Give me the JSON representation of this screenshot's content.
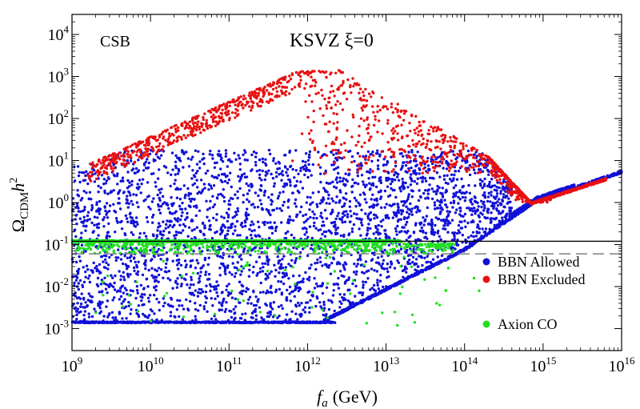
{
  "chart_data": {
    "type": "scatter",
    "title": "KSVZ ξ=0",
    "annotation": "CSB",
    "xlabel": {
      "var": "f",
      "sub": "a",
      "unit": "(GeV)"
    },
    "ylabel": {
      "sym": "Ω",
      "sub": "CDM",
      "rest": "h",
      "sup": "2"
    },
    "x_scale": "log",
    "y_scale": "log",
    "xlim": [
      1000000000.0,
      1e+16
    ],
    "ylim": [
      0.0003,
      30000
    ],
    "x_ticks": [
      {
        "base": "10",
        "exp": "9",
        "value": 1000000000.0
      },
      {
        "base": "10",
        "exp": "10",
        "value": 10000000000.0
      },
      {
        "base": "10",
        "exp": "11",
        "value": 100000000000.0
      },
      {
        "base": "10",
        "exp": "12",
        "value": 1000000000000.0
      },
      {
        "base": "10",
        "exp": "13",
        "value": 10000000000000.0
      },
      {
        "base": "10",
        "exp": "14",
        "value": 100000000000000.0
      },
      {
        "base": "10",
        "exp": "15",
        "value": 1000000000000000.0
      },
      {
        "base": "10",
        "exp": "16",
        "value": 1e+16
      }
    ],
    "y_ticks": [
      {
        "base": "10",
        "exp": "-3",
        "value": 0.001
      },
      {
        "base": "10",
        "exp": "-2",
        "value": 0.01
      },
      {
        "base": "10",
        "exp": "-1",
        "value": 0.1
      },
      {
        "base": "10",
        "exp": "0",
        "value": 1
      },
      {
        "base": "10",
        "exp": "1",
        "value": 10
      },
      {
        "base": "10",
        "exp": "2",
        "value": 100
      },
      {
        "base": "10",
        "exp": "3",
        "value": 1000
      },
      {
        "base": "10",
        "exp": "4",
        "value": 10000
      }
    ],
    "reference_lines": [
      {
        "name": "dm-observed-line",
        "y": 0.12,
        "style": "solid",
        "color": "#000000"
      },
      {
        "name": "dm-dashed-line",
        "y": 0.06,
        "style": "dashed",
        "color": "#888888"
      }
    ],
    "series": [
      {
        "name": "BBN Allowed",
        "color": "#1010d8",
        "description_points": [
          [
            1000000000.0,
            0.0014
          ],
          [
            10000000000.0,
            0.0014
          ],
          [
            100000000000.0,
            0.0014
          ],
          [
            1000000000000.0,
            0.0014
          ],
          [
            2000000000000.0,
            0.0014
          ],
          [
            10000000000000.0,
            0.008
          ],
          [
            100000000000000.0,
            0.07
          ],
          [
            1000000000000000.0,
            0.9
          ],
          [
            3000000000000000.0,
            2.2
          ],
          [
            1e+16,
            5
          ]
        ]
      },
      {
        "name": "BBN Excluded",
        "color": "#e81010",
        "description_points": [
          [
            2000000000.0,
            8
          ],
          [
            10000000000.0,
            40
          ],
          [
            100000000000.0,
            400
          ],
          [
            700000000000.0,
            1400
          ],
          [
            2000000000000.0,
            1400
          ],
          [
            10000000000000.0,
            300
          ],
          [
            100000000000000.0,
            30
          ],
          [
            500000000000000.0,
            2
          ],
          [
            800000000000000.0,
            1.0
          ],
          [
            2000000000000000.0,
            1.5
          ]
        ]
      },
      {
        "name": "Axion CO",
        "color": "#20e020",
        "description_points": [
          [
            1000000000.0,
            0.12
          ],
          [
            100000000000.0,
            0.12
          ],
          [
            10000000000000.0,
            0.11
          ],
          [
            50000000000000.0,
            0.08
          ],
          [
            80000000000000.0,
            0.03
          ],
          [
            100000000000000.0,
            0.01
          ]
        ]
      }
    ],
    "legend_position": "right-middle",
    "grid": false
  }
}
